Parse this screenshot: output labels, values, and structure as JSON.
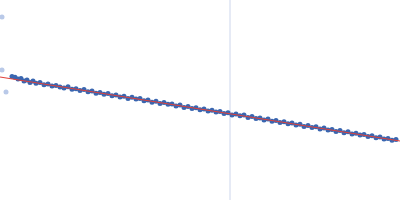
{
  "chart_data": {
    "type": "scatter",
    "xlim": [
      0,
      400
    ],
    "ylim": [
      0,
      200
    ],
    "tick_labels": false,
    "grid": false,
    "series": [
      {
        "type": "scatter",
        "marker": "circle",
        "color": "#3a66b0",
        "x": [
          12,
          15,
          18,
          21,
          24,
          27,
          30,
          33,
          36,
          40,
          44,
          48,
          52,
          56,
          60,
          64,
          68,
          72,
          76,
          80,
          84,
          88,
          92,
          96,
          100,
          104,
          108,
          112,
          116,
          120,
          124,
          128,
          132,
          136,
          140,
          144,
          148,
          152,
          156,
          160,
          164,
          168,
          172,
          176,
          180,
          184,
          188,
          192,
          196,
          200,
          204,
          208,
          212,
          216,
          220,
          224,
          228,
          232,
          236,
          240,
          244,
          248,
          252,
          256,
          260,
          264,
          268,
          272,
          276,
          280,
          284,
          288,
          292,
          296,
          300,
          304,
          308,
          312,
          316,
          320,
          324,
          328,
          332,
          336,
          340,
          344,
          348,
          352,
          356,
          360,
          364,
          368,
          372,
          376,
          380,
          384,
          388,
          392,
          396
        ],
        "values": [
          123.5,
          122.8,
          121.0,
          121.4,
          118.9,
          120.1,
          117.5,
          119.0,
          116.8,
          117.4,
          115.2,
          116.0,
          113.9,
          114.6,
          113.0,
          112.1,
          113.2,
          110.8,
          111.3,
          109.6,
          110.4,
          108.2,
          108.9,
          106.8,
          107.6,
          105.7,
          106.5,
          104.2,
          105.0,
          102.9,
          103.8,
          101.6,
          102.7,
          100.9,
          101.4,
          99.2,
          99.9,
          97.7,
          98.8,
          96.5,
          97.6,
          95.7,
          96.1,
          93.9,
          95.0,
          92.4,
          93.5,
          91.5,
          92.2,
          90.3,
          91.1,
          89.0,
          89.8,
          87.9,
          88.6,
          86.5,
          87.3,
          85.1,
          86.0,
          84.2,
          84.9,
          82.5,
          83.4,
          81.6,
          82.1,
          80.0,
          80.9,
          78.8,
          79.6,
          77.6,
          78.3,
          76.2,
          77.0,
          75.1,
          75.7,
          73.6,
          74.5,
          72.4,
          73.2,
          71.0,
          72.0,
          69.9,
          70.6,
          68.5,
          69.4,
          67.2,
          68.2,
          66.0,
          66.8,
          64.9,
          65.5,
          63.6,
          64.2,
          62.3,
          62.9,
          61.0,
          61.5,
          59.8,
          60.4
        ]
      },
      {
        "type": "scatter",
        "marker": "circle",
        "color": "#b9c9e8",
        "x": [
          2,
          2,
          6
        ],
        "values": [
          183,
          130,
          108
        ]
      },
      {
        "type": "line",
        "line_style": "solid",
        "color": "#e0413a",
        "x": [
          0,
          400
        ],
        "values": [
          123,
          59
        ]
      }
    ],
    "vlines": [
      {
        "x": 230,
        "color": "#cdd6ec"
      }
    ]
  }
}
